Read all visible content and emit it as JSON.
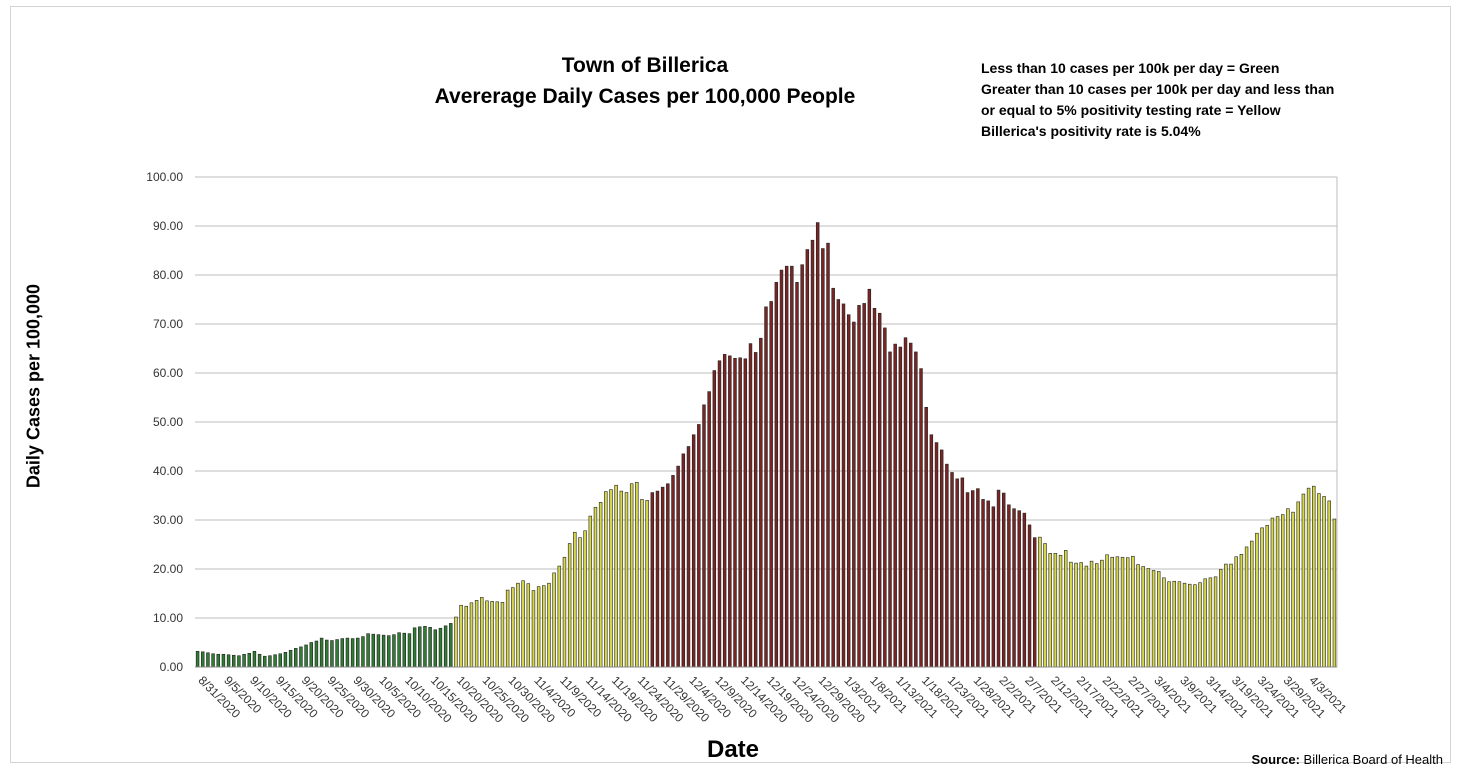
{
  "chart_data": {
    "type": "bar",
    "title": "Town of Billerica",
    "subtitle": "Avererage Daily Cases per 100,000 People",
    "xlabel": "Date",
    "ylabel": "Daily Cases per 100,000",
    "ylim": [
      0,
      100
    ],
    "yticks": [
      "0.00",
      "10.00",
      "20.00",
      "30.00",
      "40.00",
      "50.00",
      "60.00",
      "70.00",
      "80.00",
      "90.00",
      "100.00"
    ],
    "grid": true,
    "legend_notes": [
      "Less than 10 cases per 100k per day = Green",
      "Greater than 10 cases per 100k per day and less than",
      "or equal to 5% positivity testing rate = Yellow",
      "Billerica's positivity rate is 5.04%"
    ],
    "source_label": "Source:",
    "source_text": " Billerica Board of Health",
    "x_tick_labels": [
      "8/31/2020",
      "9/5/2020",
      "9/10/2020",
      "9/15/2020",
      "9/20/2020",
      "9/25/2020",
      "9/30/2020",
      "10/5/2020",
      "10/10/2020",
      "10/15/2020",
      "10/20/2020",
      "10/25/2020",
      "10/30/2020",
      "11/4/2020",
      "11/9/2020",
      "11/14/2020",
      "11/19/2020",
      "11/24/2020",
      "11/29/2020",
      "12/4/2020",
      "12/9/2020",
      "12/14/2020",
      "12/19/2020",
      "12/24/2020",
      "12/29/2020",
      "1/3/2021",
      "1/8/2021",
      "1/13/2021",
      "1/18/2021",
      "1/23/2021",
      "1/28/2021",
      "2/2/2021",
      "2/7/2021",
      "2/12/2021",
      "2/17/2021",
      "2/22/2021",
      "2/27/2021",
      "3/4/2021",
      "3/9/2021",
      "3/14/2021",
      "3/19/2021",
      "3/24/2021",
      "3/29/2021",
      "4/3/2021"
    ],
    "first_date": "8/31/2020",
    "last_date": "4/5/2021",
    "colors": {
      "green": "#2e7d32",
      "yellow": "#d6d64a",
      "red": "#7a2424"
    },
    "series": [
      {
        "values": [
          3.2,
          3.1,
          2.9,
          2.7,
          2.6,
          2.6,
          2.5,
          2.4,
          2.3,
          2.6,
          2.8,
          3.2,
          2.6,
          2.2,
          2.3,
          2.5,
          2.7,
          3.0,
          3.4,
          3.8,
          4.1,
          4.5,
          5.0,
          5.3,
          5.9,
          5.5,
          5.4,
          5.6,
          5.8,
          5.9,
          5.8,
          5.9,
          6.2,
          6.8,
          6.7,
          6.6,
          6.5,
          6.4,
          6.6,
          7.0,
          6.9,
          6.8,
          8.0,
          8.2,
          8.3,
          8.1,
          7.6,
          7.9,
          8.4,
          8.9,
          10.2,
          12.6,
          12.4,
          13.1,
          13.6,
          14.2,
          13.5,
          13.4,
          13.3,
          13.2,
          15.7,
          16.2,
          17.1,
          17.6,
          17.0,
          15.6,
          16.4,
          16.6,
          17.1,
          19.2,
          20.6,
          22.4,
          25.2,
          27.5,
          26.4,
          27.8,
          30.8,
          32.6,
          33.6,
          35.8,
          36.2,
          37.1,
          35.9,
          35.6,
          37.4,
          37.7,
          34.2,
          34.0,
          35.6,
          35.9,
          36.7,
          37.4,
          39.1,
          41.0,
          43.5,
          45.0,
          47.4,
          49.5,
          53.5,
          56.2,
          60.5,
          62.5,
          63.8,
          63.5,
          63.0,
          63.1,
          62.9,
          66.0,
          64.2,
          67.1,
          73.5,
          74.6,
          78.5,
          81.0,
          81.8,
          81.8,
          78.5,
          82.1,
          85.2,
          87.1,
          90.7,
          85.4,
          86.5,
          77.3,
          75.0,
          74.1,
          71.9,
          70.4,
          73.8,
          74.2,
          77.1,
          73.2,
          72.2,
          69.2,
          64.3,
          65.9,
          65.3,
          67.2,
          66.1,
          64.3,
          60.9,
          53.0,
          47.4,
          45.8,
          44.3,
          41.4,
          39.7,
          38.4,
          38.6,
          35.6,
          36.0,
          36.4,
          34.2,
          33.9,
          32.7,
          36.1,
          35.5,
          33.1,
          32.3,
          31.9,
          31.4,
          29.0,
          26.4,
          26.5,
          25.2,
          23.2,
          23.2,
          22.8,
          23.8,
          21.4,
          21.2,
          21.3,
          20.6,
          21.6,
          21.1,
          21.8,
          22.9,
          22.4,
          22.5,
          22.4,
          22.3,
          22.6,
          20.9,
          20.5,
          20.1,
          19.7,
          19.5,
          18.2,
          17.4,
          17.5,
          17.4,
          17.1,
          16.9,
          16.8,
          17.2,
          18.0,
          18.2,
          18.4,
          19.9,
          21.0,
          21.0,
          22.5,
          23.0,
          24.5,
          25.7,
          27.3,
          28.4,
          28.9,
          30.4,
          30.7,
          31.1,
          32.3,
          31.6,
          33.7,
          35.3,
          36.5,
          36.9,
          35.4,
          34.8,
          33.9,
          30.2
        ],
        "value_colors": [
          "green",
          "green",
          "green",
          "green",
          "green",
          "green",
          "green",
          "green",
          "green",
          "green",
          "green",
          "green",
          "green",
          "green",
          "green",
          "green",
          "green",
          "green",
          "green",
          "green",
          "green",
          "green",
          "green",
          "green",
          "green",
          "green",
          "green",
          "green",
          "green",
          "green",
          "green",
          "green",
          "green",
          "green",
          "green",
          "green",
          "green",
          "green",
          "green",
          "green",
          "green",
          "green",
          "green",
          "green",
          "green",
          "green",
          "green",
          "green",
          "green",
          "green",
          "yellow",
          "yellow",
          "yellow",
          "yellow",
          "yellow",
          "yellow",
          "yellow",
          "yellow",
          "yellow",
          "yellow",
          "yellow",
          "yellow",
          "yellow",
          "yellow",
          "yellow",
          "yellow",
          "yellow",
          "yellow",
          "yellow",
          "yellow",
          "yellow",
          "yellow",
          "yellow",
          "yellow",
          "yellow",
          "yellow",
          "yellow",
          "yellow",
          "yellow",
          "yellow",
          "yellow",
          "yellow",
          "yellow",
          "yellow",
          "yellow",
          "yellow",
          "yellow",
          "yellow",
          "red",
          "red",
          "red",
          "red",
          "red",
          "red",
          "red",
          "red",
          "red",
          "red",
          "red",
          "red",
          "red",
          "red",
          "red",
          "red",
          "red",
          "red",
          "red",
          "red",
          "red",
          "red",
          "red",
          "red",
          "red",
          "red",
          "red",
          "red",
          "red",
          "red",
          "red",
          "red",
          "red",
          "red",
          "red",
          "red",
          "red",
          "red",
          "red",
          "red",
          "red",
          "red",
          "red",
          "red",
          "red",
          "red",
          "red",
          "red",
          "red",
          "red",
          "red",
          "red",
          "red",
          "red",
          "red",
          "red",
          "red",
          "red",
          "red",
          "red",
          "red",
          "red",
          "red",
          "red",
          "red",
          "red",
          "red",
          "red",
          "red",
          "red",
          "red",
          "red",
          "red",
          "red",
          "red",
          "yellow",
          "yellow",
          "yellow",
          "yellow",
          "yellow",
          "yellow",
          "yellow",
          "yellow",
          "yellow",
          "yellow",
          "yellow",
          "yellow",
          "yellow",
          "yellow",
          "yellow",
          "yellow",
          "yellow",
          "yellow",
          "yellow",
          "yellow",
          "yellow",
          "yellow",
          "yellow",
          "yellow",
          "yellow",
          "yellow",
          "yellow",
          "yellow",
          "yellow",
          "yellow",
          "yellow",
          "yellow",
          "yellow",
          "yellow",
          "yellow",
          "yellow",
          "yellow",
          "yellow",
          "yellow",
          "yellow",
          "yellow",
          "yellow",
          "yellow",
          "yellow",
          "yellow",
          "yellow",
          "yellow",
          "yellow",
          "yellow",
          "yellow",
          "yellow",
          "yellow",
          "yellow",
          "yellow",
          "yellow",
          "yellow",
          "yellow",
          "yellow",
          "yellow",
          "yellow",
          "yellow",
          "yellow",
          "yellow",
          "yellow",
          "yellow",
          "yellow",
          "yellow",
          "yellow",
          "yellow",
          "yellow",
          "yellow",
          "yellow",
          "yellow",
          "yellow",
          "yellow",
          "yellow"
        ]
      }
    ]
  }
}
